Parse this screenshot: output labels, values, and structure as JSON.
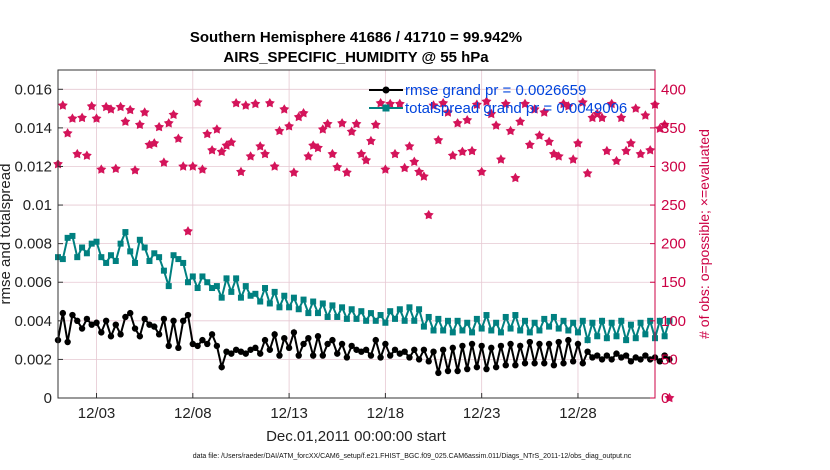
{
  "chart_data": {
    "type": "line",
    "title": "Southern Hemisphere 41686 / 41710 = 99.942%",
    "subtitle": "AIRS_SPECIFIC_HUMIDITY @ 55 hPa",
    "xlabel": "Dec.01,2011 00:00:00 start",
    "ylabel": "rmse and totalspread",
    "ylabel_right": "# of obs: o=possible; ×=evaluated",
    "xlim": [
      1.0,
      32.0
    ],
    "ylim": [
      0,
      0.017
    ],
    "ylim_right": [
      0,
      425
    ],
    "xticks": [
      {
        "x": 3,
        "label": "12/03"
      },
      {
        "x": 8,
        "label": "12/08"
      },
      {
        "x": 13,
        "label": "12/13"
      },
      {
        "x": 18,
        "label": "12/18"
      },
      {
        "x": 23,
        "label": "12/23"
      },
      {
        "x": 28,
        "label": "12/28"
      }
    ],
    "yticks": [
      {
        "v": 0,
        "label": "0"
      },
      {
        "v": 0.002,
        "label": "0.002"
      },
      {
        "v": 0.004,
        "label": "0.004"
      },
      {
        "v": 0.006,
        "label": "0.006"
      },
      {
        "v": 0.008,
        "label": "0.008"
      },
      {
        "v": 0.01,
        "label": "0.01"
      },
      {
        "v": 0.012,
        "label": "0.012"
      },
      {
        "v": 0.014,
        "label": "0.014"
      },
      {
        "v": 0.016,
        "label": "0.016"
      }
    ],
    "yticks_right": [
      {
        "v": 0,
        "label": "0"
      },
      {
        "v": 50,
        "label": "50"
      },
      {
        "v": 100,
        "label": "100"
      },
      {
        "v": 150,
        "label": "150"
      },
      {
        "v": 200,
        "label": "200"
      },
      {
        "v": 250,
        "label": "250"
      },
      {
        "v": 300,
        "label": "300"
      },
      {
        "v": 350,
        "label": "350"
      },
      {
        "v": 400,
        "label": "400"
      }
    ],
    "series": [
      {
        "name": "rmse",
        "legend": "rmse grand pr = 0.0026659",
        "color": "#000000",
        "axis": "left",
        "x_start": 1.0,
        "x_step": 0.25,
        "values": [
          0.003,
          0.0044,
          0.0029,
          0.0043,
          0.004,
          0.0036,
          0.0041,
          0.0038,
          0.0039,
          0.0034,
          0.004,
          0.0032,
          0.0038,
          0.0033,
          0.0042,
          0.0044,
          0.0036,
          0.0032,
          0.0041,
          0.0038,
          0.0037,
          0.0033,
          0.0041,
          0.0027,
          0.004,
          0.0026,
          0.004,
          0.0043,
          0.0028,
          0.0027,
          0.003,
          0.0028,
          0.0033,
          0.0027,
          0.0016,
          0.0024,
          0.0023,
          0.0025,
          0.0024,
          0.0023,
          0.0025,
          0.0026,
          0.0023,
          0.003,
          0.0025,
          0.0033,
          0.0022,
          0.0031,
          0.0026,
          0.0034,
          0.0022,
          0.0028,
          0.0031,
          0.0022,
          0.0032,
          0.0022,
          0.0028,
          0.003,
          0.0023,
          0.0028,
          0.0021,
          0.0027,
          0.0025,
          0.0024,
          0.0025,
          0.0022,
          0.003,
          0.0021,
          0.0028,
          0.0022,
          0.0025,
          0.0023,
          0.0024,
          0.0021,
          0.0025,
          0.002,
          0.0025,
          0.0019,
          0.0024,
          0.0013,
          0.0025,
          0.0014,
          0.0026,
          0.0014,
          0.0027,
          0.0015,
          0.0028,
          0.0016,
          0.0027,
          0.0015,
          0.0026,
          0.0016,
          0.0027,
          0.0017,
          0.0028,
          0.0017,
          0.0027,
          0.0018,
          0.0029,
          0.0018,
          0.0028,
          0.0018,
          0.0028,
          0.0017,
          0.0029,
          0.0018,
          0.003,
          0.0019,
          0.0028,
          0.0018,
          0.0024,
          0.0021,
          0.0022,
          0.002,
          0.0022,
          0.002,
          0.0023,
          0.0021,
          0.0022,
          0.0019,
          0.0021,
          0.002,
          0.0022,
          0.002,
          0.0021,
          0.0019,
          0.0022,
          0.002
        ]
      },
      {
        "name": "totalspread",
        "legend": "totalspread grand pr = 0.0049006",
        "color": "#008080",
        "axis": "left",
        "x_start": 1.0,
        "x_step": 0.25,
        "values": [
          0.0073,
          0.0072,
          0.0083,
          0.0084,
          0.0073,
          0.0078,
          0.0075,
          0.008,
          0.0081,
          0.0073,
          0.007,
          0.0074,
          0.0071,
          0.008,
          0.0086,
          0.0076,
          0.007,
          0.0082,
          0.0078,
          0.0071,
          0.0075,
          0.0073,
          0.0066,
          0.0058,
          0.0074,
          0.0072,
          0.007,
          0.006,
          0.0063,
          0.0057,
          0.0063,
          0.006,
          0.0057,
          0.0058,
          0.0052,
          0.0062,
          0.0055,
          0.0062,
          0.0052,
          0.0058,
          0.0053,
          0.0054,
          0.005,
          0.0057,
          0.0049,
          0.0055,
          0.0047,
          0.0053,
          0.0047,
          0.0052,
          0.0046,
          0.0051,
          0.0044,
          0.005,
          0.0044,
          0.0049,
          0.0042,
          0.0048,
          0.0042,
          0.0047,
          0.0041,
          0.0046,
          0.0041,
          0.0045,
          0.004,
          0.0044,
          0.004,
          0.0043,
          0.0039,
          0.0045,
          0.0041,
          0.0046,
          0.004,
          0.0047,
          0.004,
          0.0046,
          0.0037,
          0.0042,
          0.0035,
          0.0041,
          0.0035,
          0.004,
          0.0034,
          0.004,
          0.0035,
          0.0039,
          0.0034,
          0.0041,
          0.0036,
          0.0043,
          0.0035,
          0.0039,
          0.0034,
          0.0042,
          0.0036,
          0.0043,
          0.0035,
          0.004,
          0.0034,
          0.0039,
          0.0035,
          0.0041,
          0.0037,
          0.0042,
          0.0036,
          0.004,
          0.0035,
          0.0039,
          0.0034,
          0.004,
          0.003,
          0.0039,
          0.0032,
          0.004,
          0.0031,
          0.0039,
          0.0032,
          0.004,
          0.003,
          0.0038,
          0.0031,
          0.0039,
          0.0033,
          0.004,
          0.0031,
          0.004,
          0.0032,
          0.004
        ]
      },
      {
        "name": "nobs_evaluated",
        "color": "#d4145a",
        "axis": "right",
        "marker": "star",
        "x_start": 1.0,
        "x_step": 0.25,
        "values": [
          303,
          379,
          343,
          362,
          316,
          363,
          314,
          378,
          362,
          296,
          377,
          374,
          297,
          377,
          358,
          373,
          295,
          354,
          370,
          328,
          330,
          351,
          305,
          356,
          367,
          336,
          300,
          216,
          300,
          383,
          296,
          342,
          321,
          348,
          319,
          327,
          331,
          382,
          293,
          379,
          313,
          381,
          326,
          316,
          382,
          300,
          346,
          374,
          352,
          292,
          364,
          369,
          313,
          327,
          324,
          348,
          355,
          316,
          299,
          356,
          292,
          345,
          355,
          316,
          308,
          333,
          354,
          382,
          296,
          381,
          316,
          381,
          298,
          326,
          306,
          293,
          287,
          237,
          379,
          334,
          382,
          370,
          314,
          356,
          319,
          360,
          320,
          380,
          293,
          384,
          368,
          353,
          309,
          381,
          346,
          285,
          358,
          381,
          328,
          374,
          340,
          370,
          332,
          316,
          313,
          381,
          378,
          309,
          330,
          383,
          291,
          363,
          368,
          363,
          320,
          381,
          307,
          363,
          320,
          330,
          375,
          316,
          366,
          321,
          380,
          349,
          354,
          0
        ]
      }
    ]
  },
  "footer": "data file: /Users/raeder/DAI/ATM_forcXX/CAM6_setup/f.e21.FHIST_BGC.f09_025.CAM6assim.011/Diags_NTrS_2011-12/obs_diag_output.nc"
}
